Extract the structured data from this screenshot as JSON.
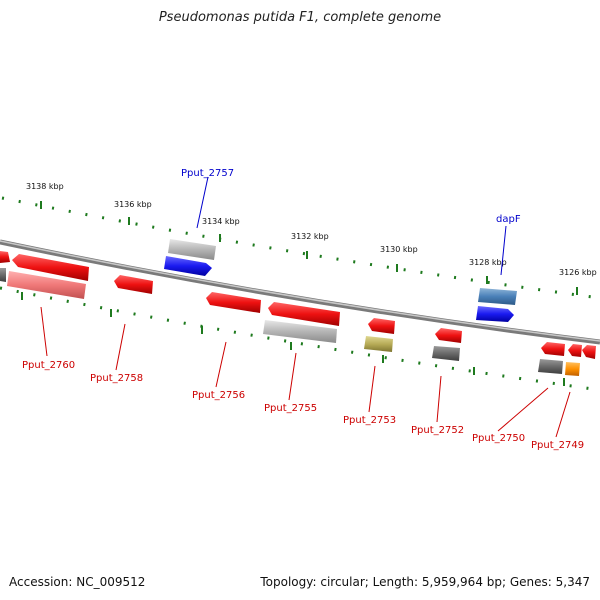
{
  "header": {
    "title": "Pseudomonas putida F1, complete genome"
  },
  "footer": {
    "accession": "Accession: NC_009512",
    "summary": "Topology: circular; Length: 5,959,964 bp; Genes: 5,347"
  },
  "ruler": {
    "labels": [
      "3138 kbp",
      "3136 kbp",
      "3134 kbp",
      "3132 kbp",
      "3130 kbp",
      "3128 kbp",
      "3126 kbp"
    ],
    "tick_color": "#1e7a1e"
  },
  "genes": {
    "labels_blue": [
      "Pput_2757",
      "dapF"
    ],
    "labels_red": [
      "Pput_2760",
      "Pput_2758",
      "Pput_2756",
      "Pput_2755",
      "Pput_2753",
      "Pput_2752",
      "Pput_2750",
      "Pput_2749"
    ]
  },
  "colors": {
    "backbone": "#8a8a8a",
    "red_gene": "#ee1111",
    "blue_gene": "#1a1af0",
    "red_label": "#cc0000",
    "blue_label": "#0000cc"
  }
}
